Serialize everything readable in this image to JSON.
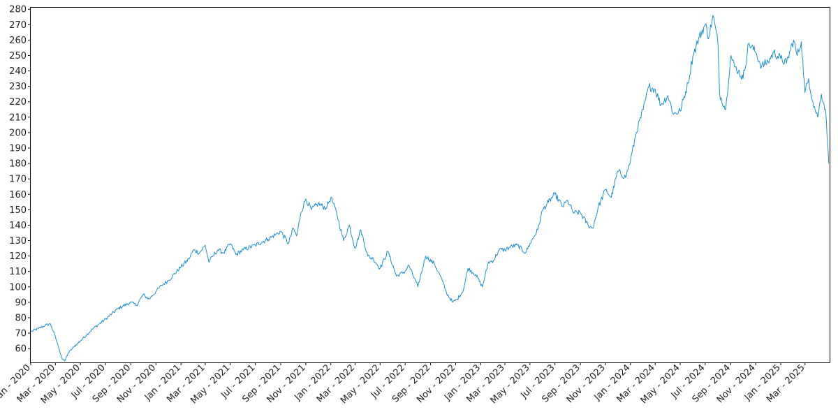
{
  "chart_data": {
    "type": "line",
    "title": "",
    "xlabel": "",
    "ylabel": "",
    "xlim": [
      "2020-01-01",
      "2025-04-30"
    ],
    "ylim": [
      51,
      281
    ],
    "grid": false,
    "line_color": "#1a8fd6",
    "yticks": [
      60,
      70,
      80,
      90,
      100,
      110,
      120,
      130,
      140,
      150,
      160,
      170,
      180,
      190,
      200,
      210,
      220,
      230,
      240,
      250,
      260,
      270,
      280
    ],
    "xticks": [
      {
        "date": "2020-01-01",
        "label": "Jan - 2020"
      },
      {
        "date": "2020-03-01",
        "label": "Mar - 2020"
      },
      {
        "date": "2020-05-01",
        "label": "May - 2020"
      },
      {
        "date": "2020-07-01",
        "label": "Jul - 2020"
      },
      {
        "date": "2020-09-01",
        "label": "Sep - 2020"
      },
      {
        "date": "2020-11-01",
        "label": "Nov - 2020"
      },
      {
        "date": "2021-01-01",
        "label": "Jan - 2021"
      },
      {
        "date": "2021-03-01",
        "label": "Mar - 2021"
      },
      {
        "date": "2021-05-01",
        "label": "May - 2021"
      },
      {
        "date": "2021-07-01",
        "label": "Jul - 2021"
      },
      {
        "date": "2021-09-01",
        "label": "Sep - 2021"
      },
      {
        "date": "2021-11-01",
        "label": "Nov - 2021"
      },
      {
        "date": "2022-01-01",
        "label": "Jan - 2022"
      },
      {
        "date": "2022-03-01",
        "label": "Mar - 2022"
      },
      {
        "date": "2022-05-01",
        "label": "May - 2022"
      },
      {
        "date": "2022-07-01",
        "label": "Jul - 2022"
      },
      {
        "date": "2022-09-01",
        "label": "Sep - 2022"
      },
      {
        "date": "2022-11-01",
        "label": "Nov - 2022"
      },
      {
        "date": "2023-01-01",
        "label": "Jan - 2023"
      },
      {
        "date": "2023-03-01",
        "label": "Mar - 2023"
      },
      {
        "date": "2023-05-01",
        "label": "May - 2023"
      },
      {
        "date": "2023-07-01",
        "label": "Jul - 2023"
      },
      {
        "date": "2023-09-01",
        "label": "Sep - 2023"
      },
      {
        "date": "2023-11-01",
        "label": "Nov - 2023"
      },
      {
        "date": "2024-01-01",
        "label": "Jan - 2024"
      },
      {
        "date": "2024-03-01",
        "label": "Mar - 2024"
      },
      {
        "date": "2024-05-01",
        "label": "May - 2024"
      },
      {
        "date": "2024-07-01",
        "label": "Jul - 2024"
      },
      {
        "date": "2024-09-01",
        "label": "Sep - 2024"
      },
      {
        "date": "2024-11-01",
        "label": "Nov - 2024"
      },
      {
        "date": "2025-01-01",
        "label": "Jan - 2025"
      },
      {
        "date": "2025-03-01",
        "label": "Mar - 2025"
      }
    ],
    "series": [
      {
        "x": [
          "2020-01-02",
          "2020-01-20",
          "2020-02-05",
          "2020-02-18",
          "2020-02-28",
          "2020-03-10",
          "2020-03-18",
          "2020-03-24",
          "2020-04-01",
          "2020-04-15",
          "2020-05-01",
          "2020-06-01",
          "2020-07-01",
          "2020-08-01",
          "2020-09-01",
          "2020-09-15",
          "2020-10-01",
          "2020-10-15",
          "2020-11-01",
          "2020-11-15",
          "2020-12-01",
          "2021-01-01",
          "2021-01-20",
          "2021-02-01",
          "2021-02-15",
          "2021-03-01",
          "2021-03-10",
          "2021-03-20",
          "2021-04-01",
          "2021-04-15",
          "2021-05-01",
          "2021-05-15",
          "2021-06-01",
          "2021-07-01",
          "2021-08-01",
          "2021-08-20",
          "2021-09-01",
          "2021-09-20",
          "2021-10-01",
          "2021-10-10",
          "2021-10-20",
          "2021-11-01",
          "2021-11-15",
          "2021-12-01",
          "2021-12-20",
          "2022-01-01",
          "2022-01-15",
          "2022-02-01",
          "2022-02-15",
          "2022-03-01",
          "2022-03-15",
          "2022-04-01",
          "2022-04-15",
          "2022-05-01",
          "2022-05-20",
          "2022-06-10",
          "2022-07-01",
          "2022-07-10",
          "2022-08-01",
          "2022-08-20",
          "2022-09-10",
          "2022-09-25",
          "2022-10-10",
          "2022-10-25",
          "2022-11-05",
          "2022-11-20",
          "2022-12-01",
          "2022-12-20",
          "2023-01-05",
          "2023-01-20",
          "2023-02-01",
          "2023-02-15",
          "2023-03-01",
          "2023-03-15",
          "2023-04-01",
          "2023-04-20",
          "2023-05-01",
          "2023-05-20",
          "2023-06-01",
          "2023-06-15",
          "2023-07-01",
          "2023-07-20",
          "2023-08-01",
          "2023-08-15",
          "2023-09-01",
          "2023-09-20",
          "2023-10-01",
          "2023-10-15",
          "2023-11-01",
          "2023-11-15",
          "2023-12-01",
          "2023-12-20",
          "2024-01-01",
          "2024-01-15",
          "2024-02-01",
          "2024-02-15",
          "2024-03-01",
          "2024-03-15",
          "2024-04-01",
          "2024-04-15",
          "2024-05-01",
          "2024-05-20",
          "2024-06-01",
          "2024-06-15",
          "2024-07-01",
          "2024-07-10",
          "2024-07-20",
          "2024-08-01",
          "2024-08-05",
          "2024-08-20",
          "2024-09-01",
          "2024-09-10",
          "2024-09-20",
          "2024-10-01",
          "2024-10-15",
          "2024-11-01",
          "2024-11-15",
          "2024-12-01",
          "2024-12-15",
          "2025-01-01",
          "2025-01-15",
          "2025-02-01",
          "2025-02-10",
          "2025-02-20",
          "2025-03-01",
          "2025-03-10",
          "2025-03-20",
          "2025-04-01",
          "2025-04-10",
          "2025-04-20",
          "2025-04-28"
        ],
        "y": [
          71,
          73,
          75,
          76,
          69,
          60,
          53,
          52,
          57,
          61,
          65,
          73,
          79,
          86,
          90,
          88,
          95,
          92,
          97,
          101,
          104,
          113,
          118,
          124,
          122,
          127,
          116,
          120,
          124,
          122,
          128,
          121,
          124,
          127,
          131,
          134,
          136,
          128,
          138,
          133,
          148,
          157,
          150,
          154,
          151,
          158,
          148,
          130,
          140,
          125,
          137,
          120,
          118,
          112,
          123,
          107,
          110,
          114,
          100,
          120,
          115,
          107,
          96,
          90,
          92,
          98,
          112,
          108,
          100,
          116,
          117,
          124,
          124,
          126,
          127,
          122,
          128,
          137,
          150,
          155,
          160,
          152,
          156,
          148,
          148,
          140,
          138,
          152,
          163,
          158,
          175,
          171,
          182,
          200,
          215,
          230,
          228,
          218,
          224,
          212,
          214,
          232,
          250,
          261,
          270,
          262,
          276,
          258,
          225,
          215,
          250,
          243,
          240,
          235,
          258,
          252,
          243,
          246,
          252,
          248,
          245,
          260,
          250,
          259,
          226,
          235,
          220,
          210,
          225,
          215,
          180
        ]
      }
    ]
  }
}
